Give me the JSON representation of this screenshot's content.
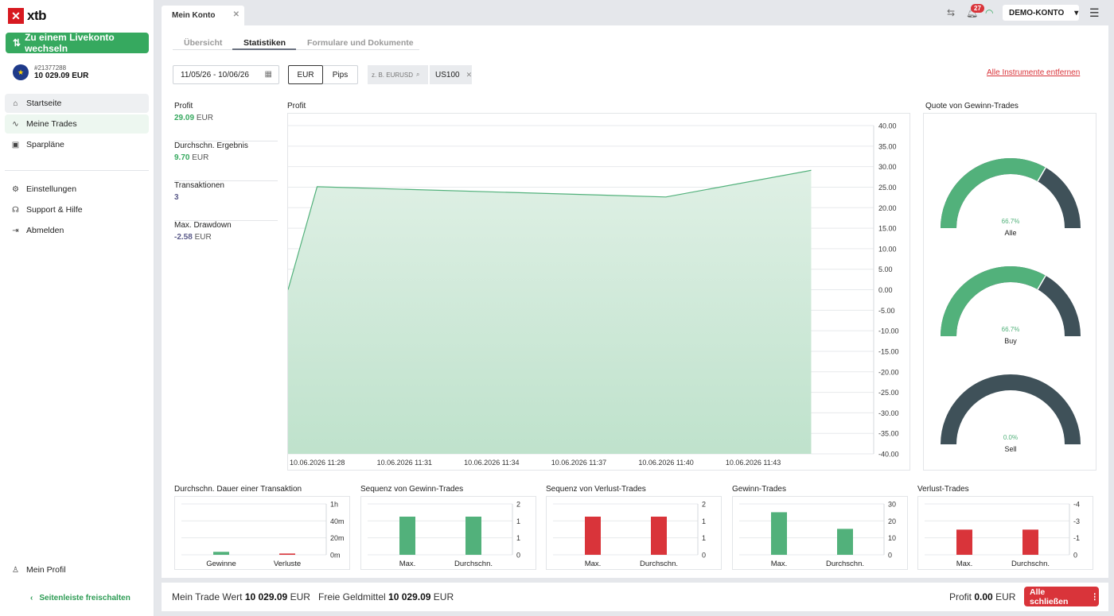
{
  "brand": {
    "logo_text": "xtb"
  },
  "sidebar": {
    "live_button": "Zu einem Livekonto wechseln",
    "account_id": "#21377288",
    "account_balance": "10 029.09 EUR",
    "items": [
      {
        "label": "Startseite",
        "icon": "home-icon"
      },
      {
        "label": "Meine Trades",
        "icon": "trades-icon"
      },
      {
        "label": "Sparpläne",
        "icon": "savings-icon"
      },
      {
        "label": "Einstellungen",
        "icon": "gear-icon"
      },
      {
        "label": "Support & Hilfe",
        "icon": "headset-icon"
      },
      {
        "label": "Abmelden",
        "icon": "logout-icon"
      }
    ],
    "profile": "Mein Profil",
    "unlock": "Seitenleiste freischalten"
  },
  "topbar": {
    "tab_label": "Mein Konto",
    "notification_count": "27",
    "account_mode": "DEMO-KONTO"
  },
  "subtabs": [
    "Übersicht",
    "Statistiken",
    "Formulare und Dokumente"
  ],
  "filters": {
    "date_range": "11/05/26 - 10/06/26",
    "unit_eur": "EUR",
    "unit_pips": "Pips",
    "search_placeholder": "z. B. EURUSD",
    "instrument": "US100",
    "remove_all": "Alle Instrumente entfernen"
  },
  "stats": [
    {
      "label": "Profit",
      "value": "29.09",
      "unit": "EUR"
    },
    {
      "label": "Durchschn. Ergebnis",
      "value": "9.70",
      "unit": "EUR"
    },
    {
      "label": "Transaktionen",
      "value": "3",
      "unit": ""
    },
    {
      "label": "Max. Drawdown",
      "value": "-2.58",
      "unit": "EUR"
    }
  ],
  "titles": {
    "profit": "Profit",
    "win_rate": "Quote von Gewinn-Trades",
    "avg_duration": "Durchschn. Dauer einer Transaktion",
    "win_seq": "Sequenz von Gewinn-Trades",
    "loss_seq": "Sequenz von Verlust-Trades",
    "win_trades": "Gewinn-Trades",
    "loss_trades": "Verlust-Trades"
  },
  "colors": {
    "green": "#52b17b",
    "red": "#d9343a",
    "dark": "#3f5159",
    "accent": "#36a95f"
  },
  "chart_data": [
    {
      "type": "area",
      "title": "Profit",
      "x": [
        "10.06.2026 11:28",
        "10.06.2026 11:29",
        "10.06.2026 11:41",
        "10.06.2026 11:46"
      ],
      "x_ticks": [
        "10.06.2026 11:28",
        "10.06.2026 11:31",
        "10.06.2026 11:34",
        "10.06.2026 11:37",
        "10.06.2026 11:40",
        "10.06.2026 11:43"
      ],
      "values": [
        0,
        25.1,
        22.6,
        29.1
      ],
      "y_ticks": [
        "40.00",
        "35.00",
        "30.00",
        "25.00",
        "20.00",
        "15.00",
        "10.00",
        "5.00",
        "0.00",
        "-5.00",
        "-10.00",
        "-15.00",
        "-20.00",
        "-25.00",
        "-30.00",
        "-35.00",
        "-40.00"
      ],
      "ylim": [
        -40,
        40
      ]
    },
    {
      "type": "pie",
      "title": "Quote von Gewinn-Trades",
      "gauges": [
        {
          "name": "Alle",
          "value": 66.7,
          "label": "66.7%"
        },
        {
          "name": "Buy",
          "value": 66.7,
          "label": "66.7%"
        },
        {
          "name": "Sell",
          "value": 0,
          "label": "0.0%"
        }
      ]
    },
    {
      "type": "bar",
      "title": "Durchschn. Dauer einer Transaktion",
      "categories": [
        "Gewinne",
        "Verluste"
      ],
      "values": [
        3.5,
        1.5
      ],
      "unit": "minutes",
      "y_ticks": [
        "1h",
        "40m",
        "20m",
        "0m"
      ],
      "ylim": [
        0,
        60
      ]
    },
    {
      "type": "bar",
      "title": "Sequenz von Gewinn-Trades",
      "categories": [
        "Max.",
        "Durchschn."
      ],
      "values": [
        1.5,
        1.5
      ],
      "y_ticks": [
        "2",
        "1",
        "1",
        "0"
      ],
      "ylim": [
        0,
        2
      ]
    },
    {
      "type": "bar",
      "title": "Sequenz von Verlust-Trades",
      "categories": [
        "Max.",
        "Durchschn."
      ],
      "values": [
        1.5,
        1.5
      ],
      "y_ticks": [
        "2",
        "1",
        "1",
        "0"
      ],
      "ylim": [
        0,
        2
      ]
    },
    {
      "type": "bar",
      "title": "Gewinn-Trades",
      "categories": [
        "Max.",
        "Durchschn."
      ],
      "values": [
        25.1,
        15.3
      ],
      "y_ticks": [
        "30",
        "20",
        "10",
        "0"
      ],
      "ylim": [
        0,
        30
      ]
    },
    {
      "type": "bar",
      "title": "Verlust-Trades",
      "categories": [
        "Max.",
        "Durchschn."
      ],
      "values": [
        -1.98,
        -1.98
      ],
      "y_ticks": [
        "-4",
        "-3",
        "-1",
        "0"
      ],
      "ylim": [
        0,
        -4
      ]
    }
  ],
  "bottom": {
    "trade_value_label": "Mein Trade Wert",
    "trade_value": "10 029.09",
    "free_funds_label": "Freie Geldmittel",
    "free_funds": "10 029.09",
    "currency": "EUR",
    "profit_label": "Profit",
    "profit_value": "0.00",
    "close_all": "Alle schließen"
  }
}
